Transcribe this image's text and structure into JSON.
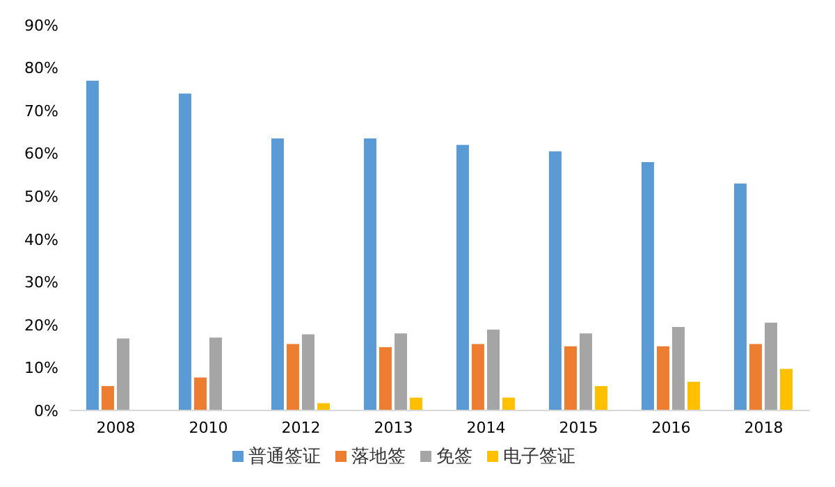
{
  "chart_data": {
    "type": "bar",
    "categories": [
      "2008",
      "2010",
      "2012",
      "2013",
      "2014",
      "2015",
      "2016",
      "2018"
    ],
    "series": [
      {
        "name": "普通签证",
        "color": "#5b9bd5",
        "values": [
          77,
          74,
          63.5,
          63.5,
          62,
          60.5,
          58,
          53
        ]
      },
      {
        "name": "落地签",
        "color": "#ed7d31",
        "values": [
          5.7,
          7.7,
          15.5,
          14.8,
          15.5,
          15,
          15,
          15.5
        ]
      },
      {
        "name": "免签",
        "color": "#a5a5a5",
        "values": [
          16.8,
          17,
          17.8,
          18,
          18.9,
          18,
          19.5,
          20.5
        ]
      },
      {
        "name": "电子签证",
        "color": "#ffc000",
        "values": [
          0,
          0,
          1.7,
          3,
          3,
          5.7,
          6.7,
          9.7
        ]
      }
    ],
    "ylim": [
      0,
      90
    ],
    "yticks": [
      {
        "value": 0,
        "label": "0%"
      },
      {
        "value": 10,
        "label": "10%"
      },
      {
        "value": 20,
        "label": "20%"
      },
      {
        "value": 30,
        "label": "30%"
      },
      {
        "value": 40,
        "label": "40%"
      },
      {
        "value": 50,
        "label": "50%"
      },
      {
        "value": 60,
        "label": "60%"
      },
      {
        "value": 70,
        "label": "70%"
      },
      {
        "value": 80,
        "label": "80%"
      },
      {
        "value": 90,
        "label": "90%"
      }
    ],
    "grid": false,
    "legend": "bottom"
  }
}
